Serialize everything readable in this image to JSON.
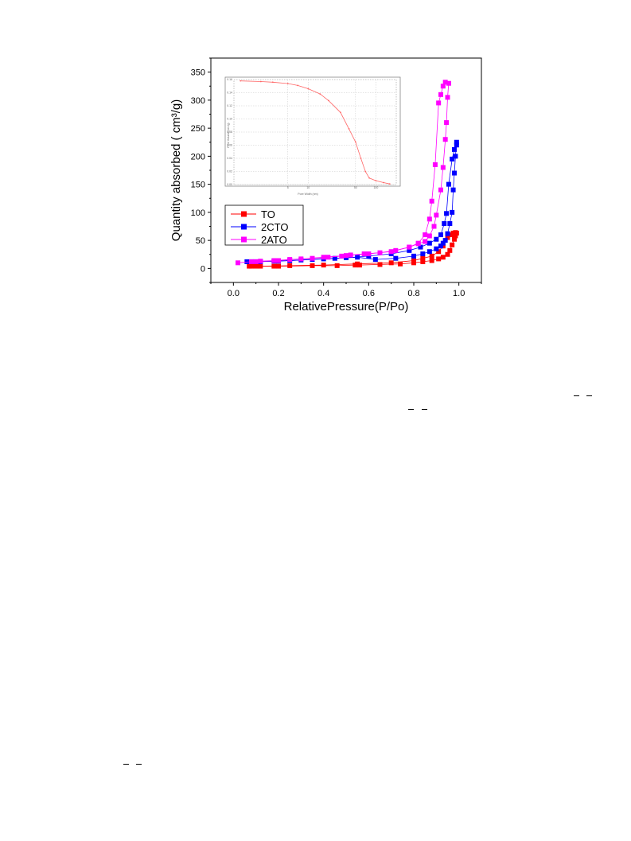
{
  "chart_data": {
    "type": "scatter",
    "xlabel": "RelativePressure(P/Po)",
    "ylabel": "Quantity absorbed ( cm³/g)",
    "xlim": [
      -0.1,
      1.1
    ],
    "ylim": [
      -25,
      375
    ],
    "xticks": [
      "0.0",
      "0.2",
      "0.4",
      "0.6",
      "0.8",
      "1.0"
    ],
    "yticks": [
      "0",
      "50",
      "100",
      "150",
      "200",
      "250",
      "300",
      "350"
    ],
    "legend_position": "lower-left",
    "series": [
      {
        "name": "TO",
        "color": "#ff0000",
        "adsorption": [
          [
            0.07,
            4
          ],
          [
            0.08,
            4
          ],
          [
            0.12,
            4
          ],
          [
            0.18,
            4
          ],
          [
            0.2,
            4
          ],
          [
            0.35,
            5
          ],
          [
            0.46,
            5
          ],
          [
            0.54,
            6
          ],
          [
            0.56,
            6
          ],
          [
            0.65,
            7
          ],
          [
            0.74,
            8
          ],
          [
            0.8,
            10
          ],
          [
            0.84,
            12
          ],
          [
            0.88,
            14
          ],
          [
            0.91,
            17
          ],
          [
            0.93,
            20
          ],
          [
            0.95,
            25
          ],
          [
            0.96,
            32
          ],
          [
            0.97,
            42
          ],
          [
            0.98,
            52
          ],
          [
            0.985,
            58
          ],
          [
            0.99,
            63
          ]
        ],
        "desorption": [
          [
            0.985,
            64
          ],
          [
            0.975,
            63
          ],
          [
            0.965,
            60
          ],
          [
            0.95,
            55
          ],
          [
            0.93,
            40
          ],
          [
            0.91,
            30
          ],
          [
            0.88,
            22
          ],
          [
            0.84,
            18
          ],
          [
            0.8,
            14
          ],
          [
            0.7,
            10
          ],
          [
            0.55,
            8
          ],
          [
            0.4,
            6
          ],
          [
            0.25,
            5
          ],
          [
            0.1,
            4
          ]
        ]
      },
      {
        "name": "2CTO",
        "color": "#0000ff",
        "adsorption": [
          [
            0.06,
            12
          ],
          [
            0.08,
            12
          ],
          [
            0.12,
            12
          ],
          [
            0.18,
            13
          ],
          [
            0.25,
            14
          ],
          [
            0.35,
            16
          ],
          [
            0.45,
            18
          ],
          [
            0.55,
            20
          ],
          [
            0.63,
            16
          ],
          [
            0.72,
            18
          ],
          [
            0.8,
            22
          ],
          [
            0.84,
            26
          ],
          [
            0.87,
            30
          ],
          [
            0.9,
            35
          ],
          [
            0.92,
            40
          ],
          [
            0.93,
            45
          ],
          [
            0.94,
            50
          ],
          [
            0.95,
            62
          ],
          [
            0.96,
            80
          ],
          [
            0.97,
            100
          ],
          [
            0.975,
            140
          ],
          [
            0.98,
            170
          ],
          [
            0.985,
            200
          ],
          [
            0.99,
            225
          ]
        ],
        "desorption": [
          [
            0.99,
            220
          ],
          [
            0.98,
            212
          ],
          [
            0.97,
            195
          ],
          [
            0.955,
            150
          ],
          [
            0.945,
            98
          ],
          [
            0.935,
            80
          ],
          [
            0.92,
            60
          ],
          [
            0.9,
            52
          ],
          [
            0.87,
            45
          ],
          [
            0.83,
            38
          ],
          [
            0.78,
            32
          ],
          [
            0.7,
            26
          ],
          [
            0.6,
            22
          ],
          [
            0.5,
            19
          ],
          [
            0.4,
            17
          ],
          [
            0.3,
            15
          ],
          [
            0.2,
            13
          ],
          [
            0.1,
            12
          ]
        ]
      },
      {
        "name": "2ATO",
        "color": "#ff00ff",
        "adsorption": [
          [
            0.02,
            10
          ],
          [
            0.08,
            12
          ],
          [
            0.12,
            13
          ],
          [
            0.18,
            14
          ],
          [
            0.25,
            16
          ],
          [
            0.35,
            18
          ],
          [
            0.42,
            20
          ],
          [
            0.48,
            22
          ],
          [
            0.52,
            24
          ],
          [
            0.58,
            26
          ],
          [
            0.65,
            28
          ],
          [
            0.72,
            32
          ],
          [
            0.78,
            38
          ],
          [
            0.82,
            44
          ],
          [
            0.85,
            48
          ],
          [
            0.87,
            58
          ],
          [
            0.89,
            75
          ],
          [
            0.9,
            95
          ],
          [
            0.92,
            140
          ],
          [
            0.93,
            180
          ],
          [
            0.94,
            230
          ],
          [
            0.945,
            260
          ],
          [
            0.95,
            305
          ],
          [
            0.955,
            330
          ]
        ],
        "desorption": [
          [
            0.94,
            332
          ],
          [
            0.93,
            325
          ],
          [
            0.92,
            310
          ],
          [
            0.91,
            295
          ],
          [
            0.895,
            185
          ],
          [
            0.88,
            120
          ],
          [
            0.87,
            88
          ],
          [
            0.85,
            60
          ],
          [
            0.82,
            45
          ],
          [
            0.78,
            38
          ],
          [
            0.7,
            30
          ],
          [
            0.6,
            26
          ],
          [
            0.5,
            23
          ],
          [
            0.4,
            20
          ],
          [
            0.3,
            17
          ],
          [
            0.2,
            14
          ],
          [
            0.1,
            12
          ]
        ]
      }
    ],
    "inset": {
      "type": "line",
      "color": "#ff6666",
      "x": [
        1,
        2,
        3,
        5,
        7,
        10,
        15,
        20,
        30,
        40,
        50,
        60,
        70,
        80,
        100,
        130,
        160
      ],
      "y": [
        0.158,
        0.157,
        0.156,
        0.154,
        0.151,
        0.146,
        0.138,
        0.128,
        0.11,
        0.085,
        0.065,
        0.04,
        0.02,
        0.01,
        0.006,
        0.003,
        0.001
      ],
      "ylim": [
        0,
        0.16
      ],
      "grid": true,
      "xticks": [
        "5",
        "10",
        "50",
        "100"
      ],
      "yticks": [
        "0.00",
        "0.02",
        "0.04",
        "0.06",
        "0.08",
        "0.10",
        "0.12",
        "0.14",
        "0.16"
      ],
      "xlabel": "Pore Width (nm)",
      "ylabel": "Pore Volume(cm³/g)"
    }
  }
}
